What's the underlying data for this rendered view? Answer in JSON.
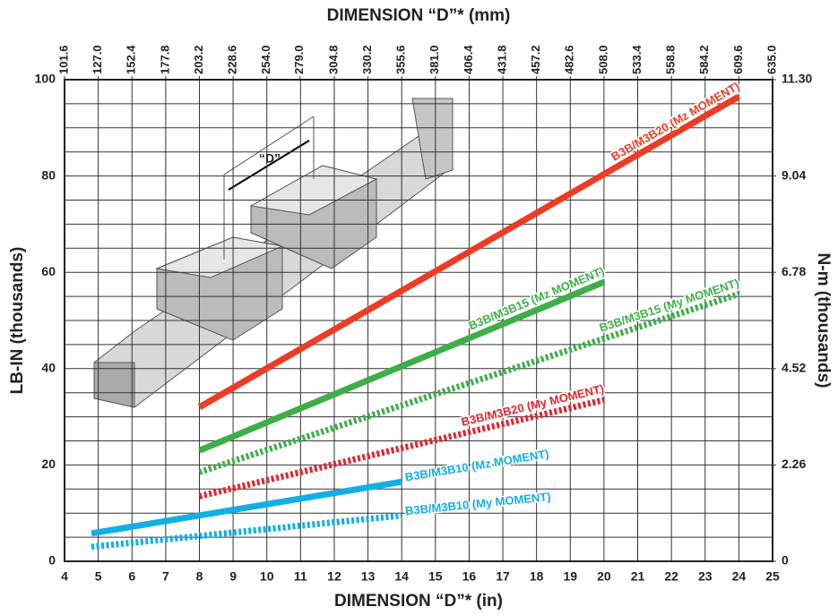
{
  "chart_data": {
    "type": "line",
    "title": "DIMENSION “D”* (mm)",
    "xlabel": "DIMENSION “D”* (in)",
    "ylabel": "LB-IN (thousands)",
    "y2label": "N-m (thousands)",
    "illustration_label": "“D”",
    "xlim": [
      4,
      25
    ],
    "xticks": [
      4,
      5,
      6,
      7,
      8,
      9,
      10,
      11,
      12,
      13,
      14,
      15,
      16,
      17,
      18,
      19,
      20,
      21,
      22,
      23,
      24,
      25
    ],
    "x2lim": [
      101.6,
      635.0
    ],
    "x2ticks": [
      101.6,
      {
        "value": 127,
        "label": "127.0"
      },
      152.4,
      177.8,
      203.2,
      228.6,
      {
        "value": 254,
        "label": "254.0"
      },
      {
        "value": 279,
        "label": "279.0"
      },
      304.8,
      330.2,
      355.6,
      {
        "value": 381,
        "label": "381.0"
      },
      406.4,
      431.8,
      457.2,
      482.6,
      {
        "value": 508,
        "label": "508.0"
      },
      533.4,
      558.8,
      584.2,
      609.6,
      {
        "value": 635,
        "label": "635.0"
      }
    ],
    "ylim": [
      0,
      100
    ],
    "yticks": [
      0,
      20,
      40,
      60,
      80,
      100
    ],
    "minor_yticks": [
      5,
      10,
      15,
      25,
      30,
      35,
      45,
      50,
      55,
      65,
      70,
      75,
      85,
      90,
      95
    ],
    "y2lim": [
      0,
      11.3
    ],
    "y2ticks": [
      0,
      2.26,
      4.52,
      6.78,
      9.04,
      {
        "value": 11.3,
        "label": "11.30"
      }
    ],
    "grid": true,
    "series": [
      {
        "name": "B3B/M3B20 (Mz MOMENT)",
        "color": "#ee3b24",
        "style": "solid",
        "x": [
          8,
          24
        ],
        "values": [
          32,
          96.5
        ]
      },
      {
        "name": "B3B/M3B15 (Mz MOMENT)",
        "color": "#3fae49",
        "style": "solid",
        "x": [
          8,
          20
        ],
        "values": [
          23,
          58
        ]
      },
      {
        "name": "B3B/M3B15 (My MOMENT)",
        "color": "#3fae49",
        "style": "dotted",
        "x": [
          8,
          24
        ],
        "values": [
          18.5,
          55.5
        ]
      },
      {
        "name": "B3B/M3B20 (My MOMENT)",
        "color": "#e0262f",
        "style": "dotted",
        "x": [
          8,
          20
        ],
        "values": [
          13.5,
          33.5
        ]
      },
      {
        "name": "B3B/M3B10 (Mz MOMENT)",
        "color": "#12aee6",
        "style": "solid",
        "x": [
          4.8,
          14
        ],
        "values": [
          5.8,
          16.5
        ]
      },
      {
        "name": "B3B/M3B10 (My MOMENT)",
        "color": "#12aee6",
        "style": "dotted",
        "x": [
          4.8,
          14
        ],
        "values": [
          3,
          9.5
        ]
      }
    ]
  }
}
